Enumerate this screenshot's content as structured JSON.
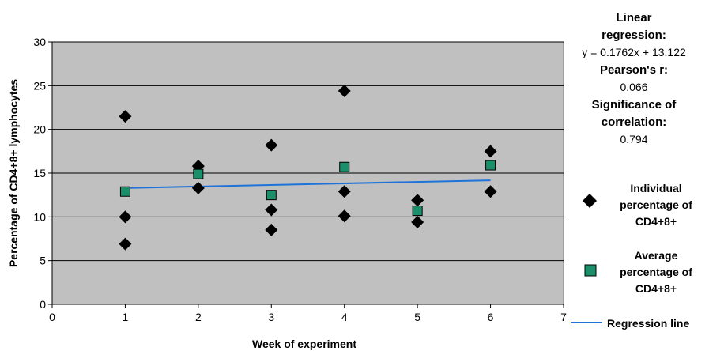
{
  "chart_data": {
    "type": "scatter",
    "xlabel": "Week of experiment",
    "ylabel": "Percentage of CD4+8+ lymphocytes",
    "xlim": [
      0,
      7
    ],
    "ylim": [
      0,
      30
    ],
    "xticks": [
      "0",
      "1",
      "2",
      "3",
      "4",
      "5",
      "6",
      "7"
    ],
    "yticks": [
      "0",
      "5",
      "10",
      "15",
      "20",
      "25",
      "30"
    ],
    "grid": "horizontal",
    "plot_background": "#c0c0c0",
    "series": [
      {
        "name": "Individual percentage of CD4+8+",
        "marker": "diamond",
        "color": "#000000",
        "points": [
          {
            "x": 1,
            "y": 21.5
          },
          {
            "x": 1,
            "y": 10.0
          },
          {
            "x": 1,
            "y": 6.9
          },
          {
            "x": 2,
            "y": 15.8
          },
          {
            "x": 2,
            "y": 13.3
          },
          {
            "x": 3,
            "y": 18.2
          },
          {
            "x": 3,
            "y": 10.8
          },
          {
            "x": 3,
            "y": 8.5
          },
          {
            "x": 4,
            "y": 24.4
          },
          {
            "x": 4,
            "y": 12.9
          },
          {
            "x": 4,
            "y": 10.1
          },
          {
            "x": 5,
            "y": 11.9
          },
          {
            "x": 5,
            "y": 9.4
          },
          {
            "x": 6,
            "y": 17.5
          },
          {
            "x": 6,
            "y": 12.9
          }
        ]
      },
      {
        "name": "Average percentage of CD4+8+",
        "marker": "square",
        "color": "#1a8f6a",
        "points": [
          {
            "x": 1,
            "y": 12.9
          },
          {
            "x": 2,
            "y": 14.9
          },
          {
            "x": 3,
            "y": 12.5
          },
          {
            "x": 4,
            "y": 15.7
          },
          {
            "x": 5,
            "y": 10.7
          },
          {
            "x": 6,
            "y": 15.9
          }
        ]
      },
      {
        "name": "Regression line",
        "marker": "line",
        "color": "#1e73d8",
        "slope": 0.1762,
        "intercept": 13.122,
        "x_range": [
          1,
          6
        ]
      }
    ]
  },
  "stats": {
    "regression_title": "Linear regression:",
    "regression_equation": "y = 0.1762x + 13.122",
    "pearson_title": "Pearson's r:",
    "pearson_value": "0.066",
    "significance_title": "Significance of correlation:",
    "significance_value": "0.794"
  }
}
